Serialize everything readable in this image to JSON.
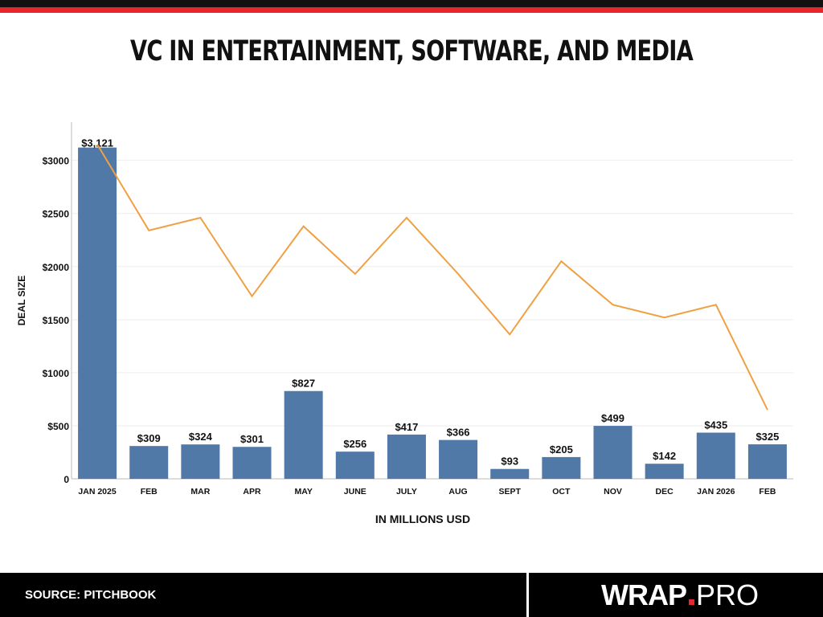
{
  "header": {
    "title": "VC IN ENTERTAINMENT, SOFTWARE, AND MEDIA"
  },
  "chart_data": {
    "type": "bar",
    "categories": [
      "JAN 2025",
      "FEB",
      "MAR",
      "APR",
      "MAY",
      "JUNE",
      "JULY",
      "AUG",
      "SEPT",
      "OCT",
      "NOV",
      "DEC",
      "JAN 2026",
      "FEB"
    ],
    "series": [
      {
        "type": "bar",
        "color": "#5079a8",
        "values": [
          3121,
          309,
          324,
          301,
          827,
          256,
          417,
          366,
          93,
          205,
          499,
          142,
          435,
          325
        ],
        "data_labels": [
          "$3,121",
          "$309",
          "$324",
          "$301",
          "$827",
          "$256",
          "$417",
          "$366",
          "$93",
          "$205",
          "$499",
          "$142",
          "$435",
          "$325"
        ]
      },
      {
        "type": "line",
        "color": "#f0a043",
        "values": [
          3150,
          2340,
          2460,
          1720,
          2380,
          1930,
          2460,
          1930,
          1360,
          2050,
          1640,
          1520,
          1640,
          650
        ]
      }
    ],
    "ylabel": "DEAL SIZE",
    "xlabel": "IN MILLIONS USD",
    "ylim": [
      0,
      3300
    ],
    "yticks": [
      0,
      500,
      1000,
      1500,
      2000,
      2500,
      3000
    ],
    "ytick_labels": [
      "0",
      "$500",
      "$1000",
      "$1500",
      "$2000",
      "$2500",
      "$3000"
    ],
    "grid": true,
    "legend": "none"
  },
  "footer": {
    "source": "SOURCE: PITCHBOOK",
    "logo_main": "WRAP",
    "logo_suffix": "PRO"
  }
}
